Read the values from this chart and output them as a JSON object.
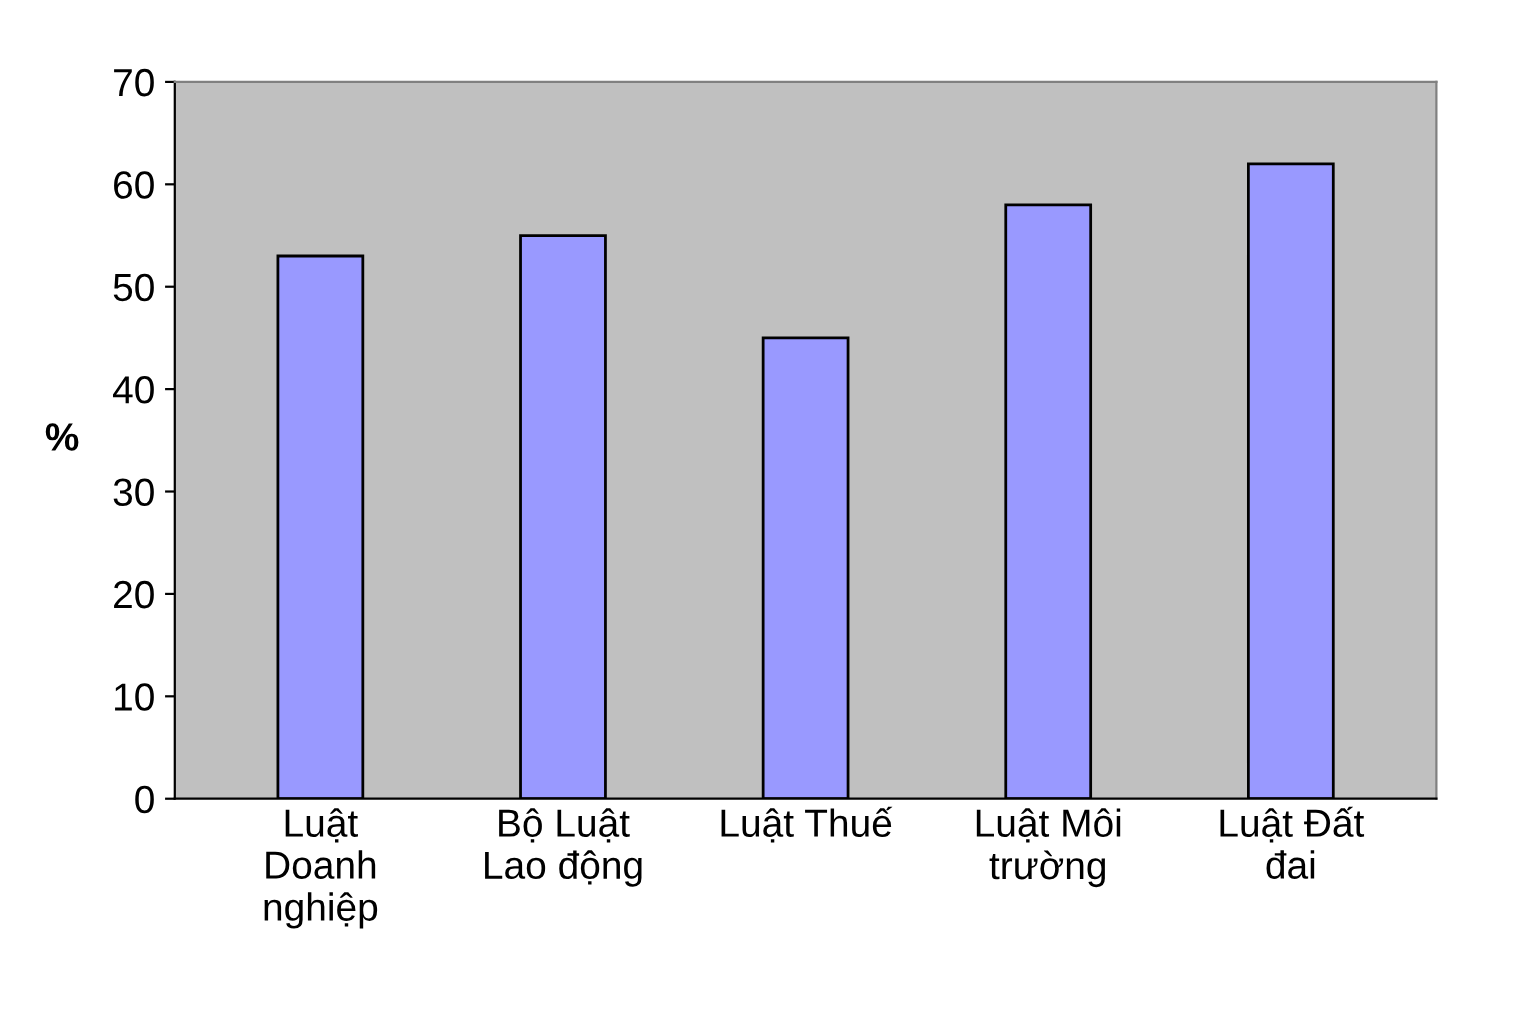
{
  "chart_data": {
    "type": "bar",
    "ylabel": "%",
    "categories": [
      "Luật\nDoanh\nnghiệp",
      "Bộ Luật\nLao động",
      "Luật Thuế",
      "Luật Môi\ntrường",
      "Luật Đất\nđai"
    ],
    "values": [
      53,
      55,
      45,
      58,
      62
    ],
    "color": "#9999ff",
    "ylim": [
      0,
      70
    ],
    "yticks": [
      0,
      10,
      20,
      30,
      40,
      50,
      60,
      70
    ],
    "grid": false
  }
}
